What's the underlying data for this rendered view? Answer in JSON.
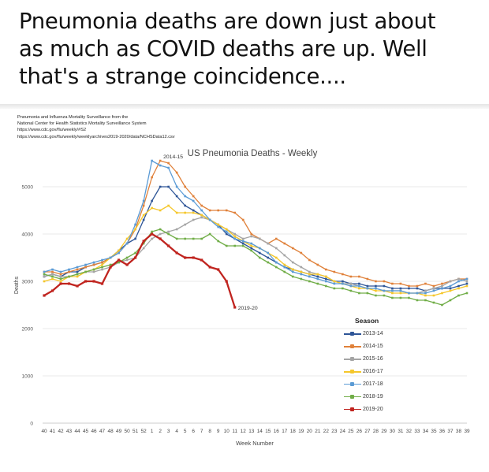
{
  "headline": {
    "lines": [
      "Pneumonia deaths are down just about",
      "as much as COVID deaths are up. Well",
      "that's a strange coincidence...."
    ]
  },
  "sources": [
    "Pneumonia and Influenza Mortality Surveillance from the",
    "National Center for Health Statistics Mortality Surveillance System",
    "https://www.cdc.gov/flu/weekly/#S2",
    "https://www.cdc.gov/flu/weekly/weeklyarchives2019-2020/data/NCHSData12.csv"
  ],
  "chart_data": {
    "type": "line",
    "title": "US Pneumonia Deaths - Weekly",
    "xlabel": "Week Number",
    "ylabel": "Deaths",
    "ylim": [
      0,
      6000
    ],
    "yticks": [
      0,
      1000,
      2000,
      3000,
      4000,
      5000
    ],
    "grid": true,
    "legend_title": "Season",
    "legend_position": "right",
    "categories": [
      "40",
      "41",
      "42",
      "43",
      "44",
      "45",
      "46",
      "47",
      "48",
      "49",
      "50",
      "51",
      "52",
      "1",
      "2",
      "3",
      "4",
      "5",
      "6",
      "7",
      "8",
      "9",
      "10",
      "11",
      "12",
      "13",
      "14",
      "15",
      "16",
      "17",
      "18",
      "19",
      "20",
      "21",
      "22",
      "23",
      "24",
      "25",
      "26",
      "27",
      "28",
      "29",
      "30",
      "31",
      "32",
      "33",
      "34",
      "35",
      "36",
      "37",
      "38",
      "39"
    ],
    "annotations": [
      {
        "text": "2014-15",
        "series": "2014-15",
        "category": "2"
      },
      {
        "text": "2019-20",
        "series": "2019-20",
        "category": "11"
      }
    ],
    "series": [
      {
        "name": "2013-14",
        "color": "#2e5597",
        "values": [
          3100,
          3150,
          3100,
          3200,
          3200,
          3300,
          3350,
          3400,
          3500,
          3650,
          3800,
          3900,
          4300,
          4700,
          5000,
          5000,
          4800,
          4600,
          4500,
          4400,
          4300,
          4200,
          4000,
          3900,
          3800,
          3700,
          3600,
          3500,
          3400,
          3300,
          3250,
          3200,
          3150,
          3100,
          3050,
          3000,
          3000,
          2950,
          2950,
          2900,
          2900,
          2900,
          2850,
          2850,
          2850,
          2850,
          2800,
          2850,
          2850,
          2850,
          2900,
          2950
        ]
      },
      {
        "name": "2014-15",
        "color": "#e0813a",
        "values": [
          3200,
          3200,
          3150,
          3200,
          3250,
          3300,
          3350,
          3400,
          3500,
          3600,
          3800,
          4100,
          4600,
          5200,
          5550,
          5500,
          5300,
          5000,
          4800,
          4600,
          4500,
          4500,
          4500,
          4450,
          4300,
          4000,
          3900,
          3800,
          3900,
          3800,
          3700,
          3600,
          3450,
          3350,
          3250,
          3200,
          3150,
          3100,
          3100,
          3050,
          3000,
          3000,
          2950,
          2950,
          2900,
          2900,
          2950,
          2900,
          2950,
          3000,
          3050,
          3050
        ]
      },
      {
        "name": "2015-16",
        "color": "#a5a5a5",
        "values": [
          3100,
          3150,
          3100,
          3100,
          3150,
          3200,
          3200,
          3250,
          3300,
          3400,
          3450,
          3500,
          3700,
          3900,
          4000,
          4050,
          4100,
          4200,
          4300,
          4350,
          4300,
          4200,
          4100,
          4000,
          3900,
          3950,
          3900,
          3800,
          3700,
          3550,
          3400,
          3300,
          3200,
          3150,
          3100,
          3000,
          2950,
          2950,
          2900,
          2850,
          2850,
          2800,
          2800,
          2800,
          2750,
          2750,
          2800,
          2850,
          2900,
          3000,
          3050,
          3000
        ]
      },
      {
        "name": "2016-17",
        "color": "#f5c72b",
        "values": [
          3000,
          3050,
          3000,
          3100,
          3100,
          3200,
          3250,
          3350,
          3500,
          3650,
          3900,
          4100,
          4400,
          4550,
          4500,
          4600,
          4450,
          4450,
          4450,
          4400,
          4300,
          4200,
          4100,
          3950,
          3850,
          3750,
          3700,
          3600,
          3500,
          3350,
          3250,
          3200,
          3150,
          3150,
          3100,
          3000,
          2950,
          2900,
          2850,
          2850,
          2800,
          2800,
          2750,
          2750,
          2750,
          2750,
          2700,
          2700,
          2750,
          2800,
          2850,
          2900
        ]
      },
      {
        "name": "2017-18",
        "color": "#5b9bd5",
        "values": [
          3200,
          3250,
          3200,
          3250,
          3300,
          3350,
          3400,
          3450,
          3500,
          3600,
          3800,
          4200,
          4700,
          5550,
          5450,
          5400,
          5000,
          4800,
          4700,
          4500,
          4300,
          4150,
          4050,
          3900,
          3850,
          3800,
          3700,
          3600,
          3400,
          3300,
          3200,
          3150,
          3100,
          3050,
          3000,
          2950,
          2950,
          2900,
          2900,
          2850,
          2850,
          2800,
          2800,
          2800,
          2750,
          2750,
          2750,
          2800,
          2850,
          2900,
          3000,
          3050
        ]
      },
      {
        "name": "2018-19",
        "color": "#70ad47",
        "values": [
          3150,
          3100,
          3050,
          3100,
          3150,
          3200,
          3250,
          3300,
          3350,
          3400,
          3500,
          3600,
          3800,
          4050,
          4100,
          4000,
          3900,
          3900,
          3900,
          3900,
          4000,
          3850,
          3750,
          3750,
          3750,
          3650,
          3500,
          3400,
          3300,
          3200,
          3100,
          3050,
          3000,
          2950,
          2900,
          2850,
          2850,
          2800,
          2750,
          2750,
          2700,
          2700,
          2650,
          2650,
          2650,
          2600,
          2600,
          2550,
          2500,
          2600,
          2700,
          2750
        ]
      },
      {
        "name": "2019-20",
        "color": "#c0241f",
        "values": [
          2700,
          2800,
          2950,
          2950,
          2900,
          3000,
          3000,
          2950,
          3300,
          3450,
          3350,
          3500,
          3850,
          4000,
          3900,
          3750,
          3600,
          3500,
          3500,
          3450,
          3300,
          3250,
          3000,
          2450,
          null,
          null,
          null,
          null,
          null,
          null,
          null,
          null,
          null,
          null,
          null,
          null,
          null,
          null,
          null,
          null,
          null,
          null,
          null,
          null,
          null,
          null,
          null,
          null,
          null,
          null,
          null,
          null
        ]
      }
    ]
  }
}
